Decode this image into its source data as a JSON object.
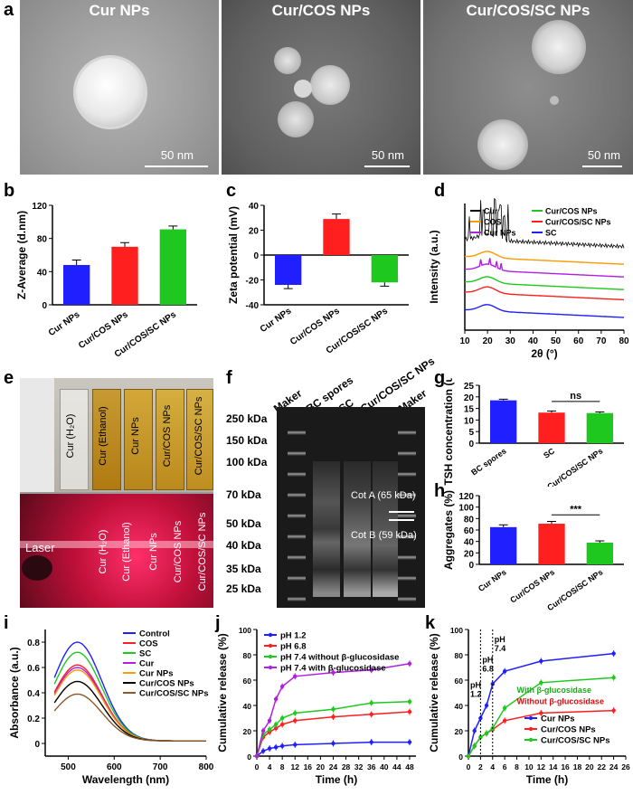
{
  "panels": {
    "a": "a",
    "b": "b",
    "c": "c",
    "d": "d",
    "e": "e",
    "f": "f",
    "g": "g",
    "h": "h",
    "i": "i",
    "j": "j",
    "k": "k"
  },
  "tem": [
    {
      "title": "Cur NPs",
      "scale": "50 nm"
    },
    {
      "title": "Cur/COS NPs",
      "scale": "50 nm"
    },
    {
      "title": "Cur/COS/SC NPs",
      "scale": "50 nm"
    }
  ],
  "photo_e": {
    "top_labels": [
      "Cur (H₂O)",
      "Cur (Ethanol)",
      "Cur NPs",
      "Cur/COS NPs",
      "Cur/COS/SC NPs"
    ],
    "bottom_labels": [
      "Cur (H₂O)",
      "Cur (Ethanol)",
      "Cur NPs",
      "Cur/COS NPs",
      "Cur/COS/SC NPs"
    ],
    "laser": "Laser"
  },
  "gel_f": {
    "lanes": [
      "Maker",
      "BC spores",
      "SC",
      "Cur/COS/SC NPs",
      "Maker"
    ],
    "mw": [
      "250 kDa",
      "150 kDa",
      "100 kDa",
      "70 kDa",
      "50 kDa",
      "40 kDa",
      "35 kDa",
      "25 kDa"
    ],
    "cotA": "Cot A (65 kDa)",
    "cotB": "Cot B (59 kDa)"
  },
  "colors": {
    "blue": "#1f1fff",
    "red": "#ff1f1f",
    "green": "#1fc81f",
    "black": "#000000",
    "orange": "#ff9a00",
    "purple": "#b020e0",
    "brown": "#8b5a2b",
    "darkred": "#c00000"
  },
  "chart_data": [
    {
      "id": "b",
      "type": "bar",
      "categories": [
        "Cur NPs",
        "Cur/COS NPs",
        "Cur/COS/SC NPs"
      ],
      "values": [
        48,
        70,
        91
      ],
      "errors": [
        6,
        5,
        4
      ],
      "colors": [
        "#1f1fff",
        "#ff1f1f",
        "#1fc81f"
      ],
      "ylabel": "Z-Average (d.nm)",
      "ylim": [
        0,
        120
      ],
      "yticks": [
        0,
        40,
        80,
        120
      ]
    },
    {
      "id": "c",
      "type": "bar",
      "categories": [
        "Cur NPs",
        "Cur/COS NPs",
        "Cur/COS/SC NPs"
      ],
      "values": [
        -24,
        29,
        -22
      ],
      "errors": [
        3,
        4,
        3
      ],
      "colors": [
        "#1f1fff",
        "#ff1f1f",
        "#1fc81f"
      ],
      "ylabel": "Zeta potential (mV)",
      "ylim": [
        -40,
        40
      ],
      "yticks": [
        -40,
        -20,
        0,
        20,
        40
      ]
    },
    {
      "id": "d",
      "type": "line",
      "xlabel": "2θ (°)",
      "ylabel": "Intensity (a.u.)",
      "xlim": [
        10,
        80
      ],
      "xticks": [
        10,
        20,
        30,
        40,
        50,
        60,
        70,
        80
      ],
      "series": [
        {
          "name": "Cur",
          "color": "#000000"
        },
        {
          "name": "COS",
          "color": "#ff9a00"
        },
        {
          "name": "Cur NPs",
          "color": "#b020e0"
        },
        {
          "name": "Cur/COS NPs",
          "color": "#1fc81f"
        },
        {
          "name": "Cur/COS/SC NPs",
          "color": "#ff1f1f"
        },
        {
          "name": "SC",
          "color": "#1f1fff"
        }
      ]
    },
    {
      "id": "g",
      "type": "bar",
      "categories": [
        "BC spores",
        "SC",
        "Cur/COS/SC NPs"
      ],
      "values": [
        18.5,
        13.2,
        13.0
      ],
      "errors": [
        0.5,
        0.7,
        0.5
      ],
      "colors": [
        "#1f1fff",
        "#ff1f1f",
        "#1fc81f"
      ],
      "ylabel": "TSH concentration (umol/L)",
      "ylim": [
        0,
        25
      ],
      "yticks": [
        0,
        5,
        10,
        15,
        20,
        25
      ],
      "annotation": "ns"
    },
    {
      "id": "h",
      "type": "bar",
      "categories": [
        "Cur NPs",
        "Cur/COS NPs",
        "Cur/COS/SC NPs"
      ],
      "values": [
        65,
        71,
        38
      ],
      "errors": [
        4,
        4,
        3
      ],
      "colors": [
        "#1f1fff",
        "#ff1f1f",
        "#1fc81f"
      ],
      "ylabel": "Aggregates (%)",
      "ylim": [
        0,
        120
      ],
      "yticks": [
        0,
        20,
        40,
        60,
        80,
        100,
        120
      ],
      "annotation": "***"
    },
    {
      "id": "i",
      "type": "line",
      "xlabel": "Wavelength (nm)",
      "ylabel": "Absorbance (a.u.)",
      "xlim": [
        450,
        800
      ],
      "ylim": [
        -0.1,
        0.9
      ],
      "xticks": [
        500,
        600,
        700,
        800
      ],
      "yticks": [
        0.0,
        0.2,
        0.4,
        0.6,
        0.8
      ],
      "series": [
        {
          "name": "Control",
          "color": "#1f1fff",
          "peak": 0.78
        },
        {
          "name": "COS",
          "color": "#ff1f1f",
          "peak": 0.6
        },
        {
          "name": "SC",
          "color": "#1fc81f",
          "peak": 0.7
        },
        {
          "name": "Cur",
          "color": "#b020e0",
          "peak": 0.58
        },
        {
          "name": "Cur NPs",
          "color": "#ff9a00",
          "peak": 0.56
        },
        {
          "name": "Cur/COS NPs",
          "color": "#000000",
          "peak": 0.47
        },
        {
          "name": "Cur/COS/SC NPs",
          "color": "#8b5a2b",
          "peak": 0.37
        }
      ]
    },
    {
      "id": "j",
      "type": "line",
      "xlabel": "Time (h)",
      "ylabel": "Cumulative release (%)",
      "xlim": [
        0,
        50
      ],
      "ylim": [
        0,
        100
      ],
      "xticks": [
        0,
        4,
        8,
        12,
        16,
        20,
        24,
        28,
        32,
        36,
        40,
        44,
        48
      ],
      "yticks": [
        0,
        20,
        40,
        60,
        80,
        100
      ],
      "series": [
        {
          "name": "pH 1.2",
          "color": "#1f1fff",
          "x": [
            0,
            2,
            4,
            6,
            8,
            12,
            24,
            36,
            48
          ],
          "y": [
            0,
            4,
            6,
            7,
            8,
            9,
            10,
            11,
            11
          ]
        },
        {
          "name": "pH 6.8",
          "color": "#ff1f1f",
          "x": [
            0,
            2,
            4,
            6,
            8,
            12,
            24,
            36,
            48
          ],
          "y": [
            0,
            15,
            19,
            22,
            25,
            28,
            31,
            33,
            35
          ]
        },
        {
          "name": "pH 7.4 without β-glucosidase",
          "color": "#1fc81f",
          "x": [
            0,
            2,
            4,
            6,
            8,
            12,
            24,
            36,
            48
          ],
          "y": [
            0,
            17,
            21,
            25,
            30,
            34,
            37,
            42,
            43
          ]
        },
        {
          "name": "pH 7.4 with β-glucosidase",
          "color": "#b020e0",
          "x": [
            0,
            2,
            4,
            6,
            8,
            12,
            24,
            36,
            48
          ],
          "y": [
            0,
            20,
            28,
            45,
            55,
            63,
            66,
            68,
            73
          ]
        }
      ]
    },
    {
      "id": "k",
      "type": "line",
      "xlabel": "Time (h)",
      "ylabel": "Cumulative release (%)",
      "xlim": [
        0,
        26
      ],
      "ylim": [
        0,
        100
      ],
      "xticks": [
        0,
        2,
        4,
        6,
        8,
        10,
        12,
        14,
        16,
        18,
        20,
        22,
        24,
        26
      ],
      "yticks": [
        0,
        20,
        40,
        60,
        80,
        100
      ],
      "annotations": [
        "pH\n1.2",
        "pH\n6.8",
        "pH\n7.4",
        "With β-glucosidase",
        "Without β-glucosidase"
      ],
      "series": [
        {
          "name": "Cur NPs",
          "color": "#1f1fff",
          "x": [
            0,
            1,
            2,
            3,
            4,
            6,
            12,
            24
          ],
          "y": [
            0,
            20,
            30,
            40,
            57,
            67,
            75,
            81
          ]
        },
        {
          "name": "Cur/COS NPs",
          "color": "#ff1f1f",
          "x": [
            0,
            1,
            2,
            3,
            4,
            6,
            12,
            24
          ],
          "y": [
            0,
            8,
            15,
            18,
            21,
            28,
            34,
            36
          ]
        },
        {
          "name": "Cur/COS/SC NPs",
          "color": "#1fc81f",
          "x": [
            0,
            1,
            2,
            3,
            4,
            6,
            12,
            24
          ],
          "y": [
            0,
            8,
            15,
            18,
            22,
            38,
            58,
            62
          ]
        }
      ]
    }
  ]
}
